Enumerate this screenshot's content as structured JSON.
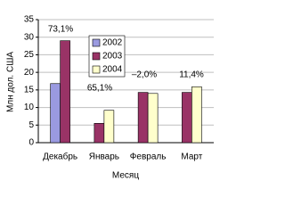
{
  "chart_data": {
    "type": "bar",
    "categories": [
      "Декабрь",
      "Январь",
      "Февраль",
      "Март"
    ],
    "series": [
      {
        "name": "2002",
        "color": "#9a9ae0",
        "values": [
          16.8,
          null,
          null,
          null
        ]
      },
      {
        "name": "2003",
        "color": "#993366",
        "values": [
          29,
          5.5,
          14.3,
          14.3
        ]
      },
      {
        "name": "2004",
        "color": "#ffffcc",
        "values": [
          null,
          9.2,
          14,
          15.9
        ]
      }
    ],
    "annotations": [
      "73,1%",
      "65,1%",
      "–2,0%",
      "11,4%"
    ],
    "y_label": "Млн дол. США",
    "x_label": "Месяц",
    "ylim": [
      0,
      35
    ],
    "yticks": [
      0,
      5,
      10,
      15,
      20,
      25,
      30,
      35
    ],
    "grid": true
  }
}
